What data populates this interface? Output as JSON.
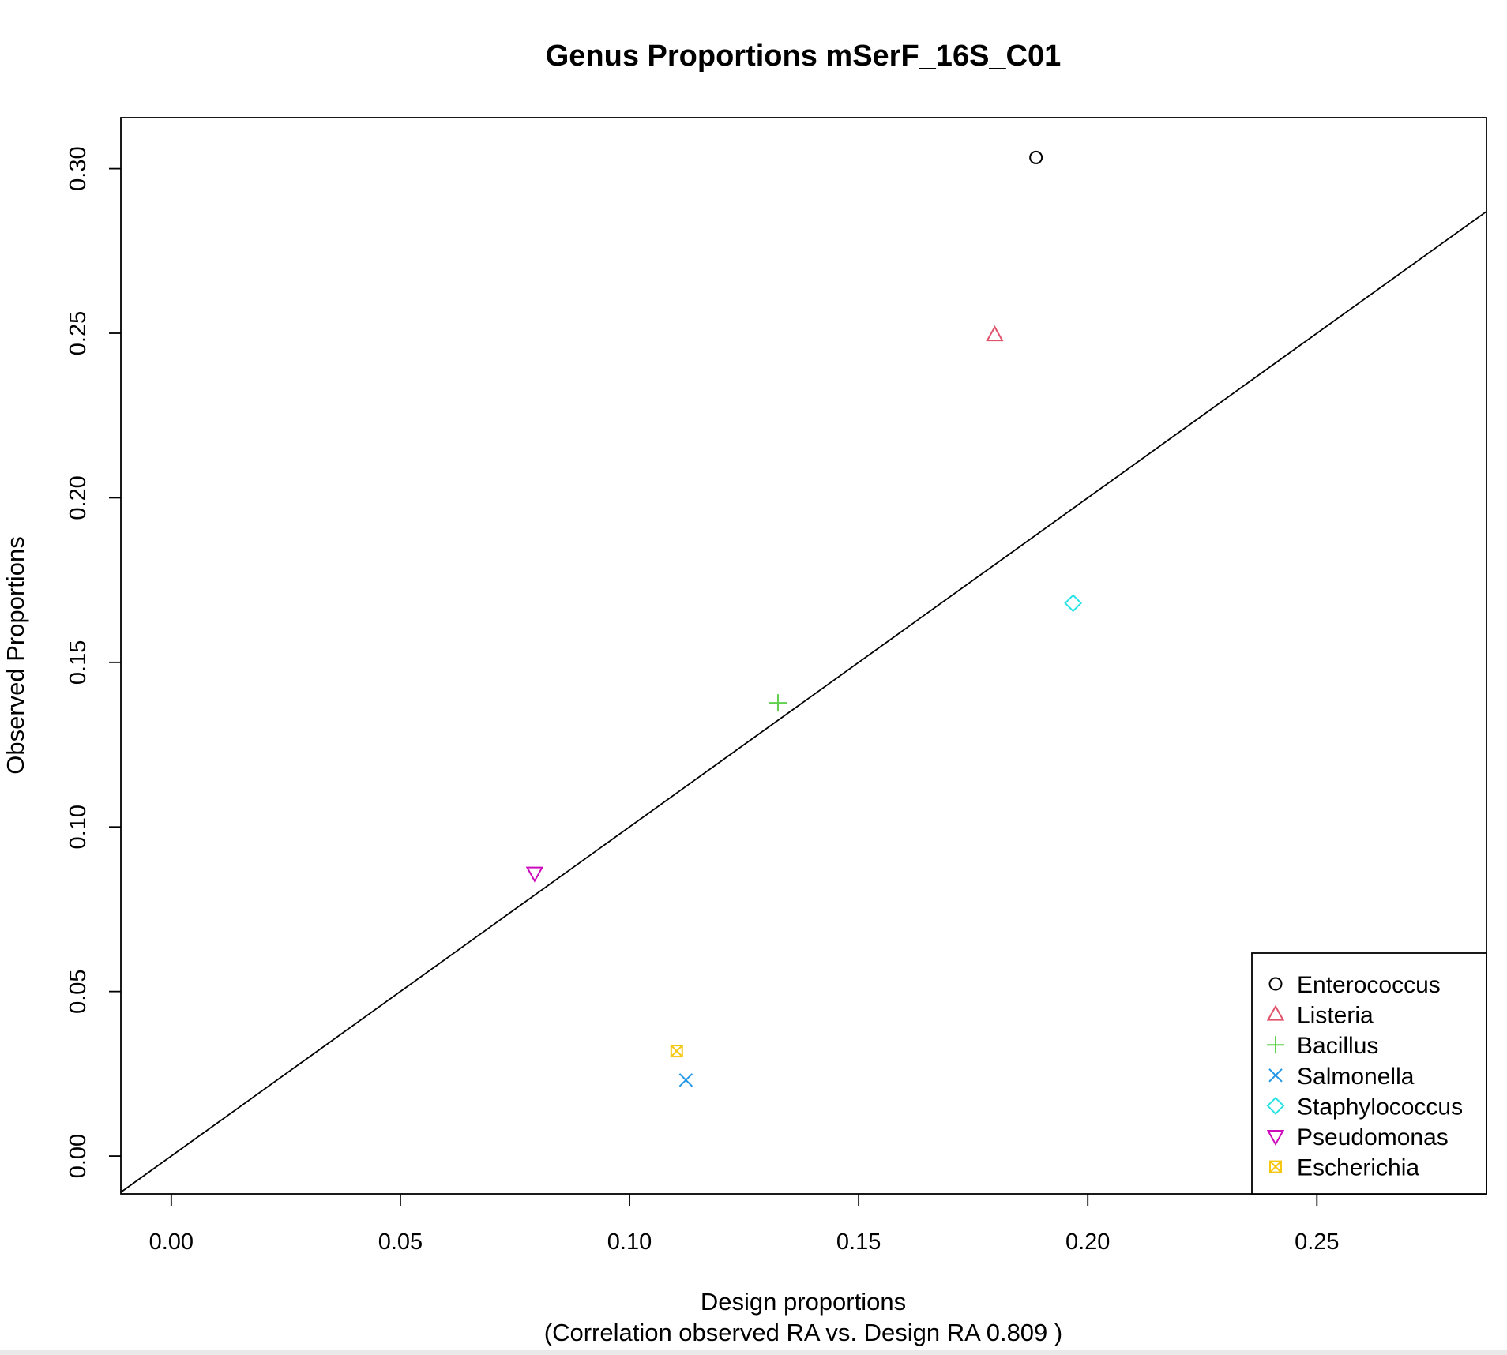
{
  "chart_data": {
    "type": "scatter",
    "title": "Genus Proportions mSerF_16S_C01",
    "xlabel": "Design proportions",
    "xlabel2": "(Correlation observed RA vs. Design RA  0.809 )",
    "ylabel": "Observed Proportions",
    "xlim": [
      -0.011,
      0.287
    ],
    "ylim": [
      -0.0115,
      0.3155
    ],
    "x_ticks": [
      0.0,
      0.05,
      0.1,
      0.15,
      0.2,
      0.25
    ],
    "x_tick_labels": [
      "0.00",
      "0.05",
      "0.10",
      "0.15",
      "0.20",
      "0.25"
    ],
    "y_ticks": [
      0.0,
      0.05,
      0.1,
      0.15,
      0.2,
      0.25,
      0.3
    ],
    "y_tick_labels": [
      "0.00",
      "0.05",
      "0.10",
      "0.15",
      "0.20",
      "0.25",
      "0.30"
    ],
    "reference_line": {
      "intercept": 0,
      "slope": 1
    },
    "grid": false,
    "legend_position": "bottom-right",
    "series": [
      {
        "name": "Enterococcus",
        "x": 0.1887,
        "y": 0.3034,
        "marker": "circle",
        "color": "#000000"
      },
      {
        "name": "Listeria",
        "x": 0.1797,
        "y": 0.2495,
        "marker": "triangle-up",
        "color": "#DF536B"
      },
      {
        "name": "Bacillus",
        "x": 0.1324,
        "y": 0.1377,
        "marker": "plus",
        "color": "#61D04F"
      },
      {
        "name": "Salmonella",
        "x": 0.1123,
        "y": 0.0231,
        "marker": "x",
        "color": "#2297E6"
      },
      {
        "name": "Staphylococcus",
        "x": 0.1968,
        "y": 0.168,
        "marker": "diamond",
        "color": "#28E2E5"
      },
      {
        "name": "Pseudomonas",
        "x": 0.0793,
        "y": 0.086,
        "marker": "triangle-down",
        "color": "#CD0BBC"
      },
      {
        "name": "Escherichia",
        "x": 0.1103,
        "y": 0.0319,
        "marker": "square-x",
        "color": "#F5C710"
      }
    ]
  }
}
